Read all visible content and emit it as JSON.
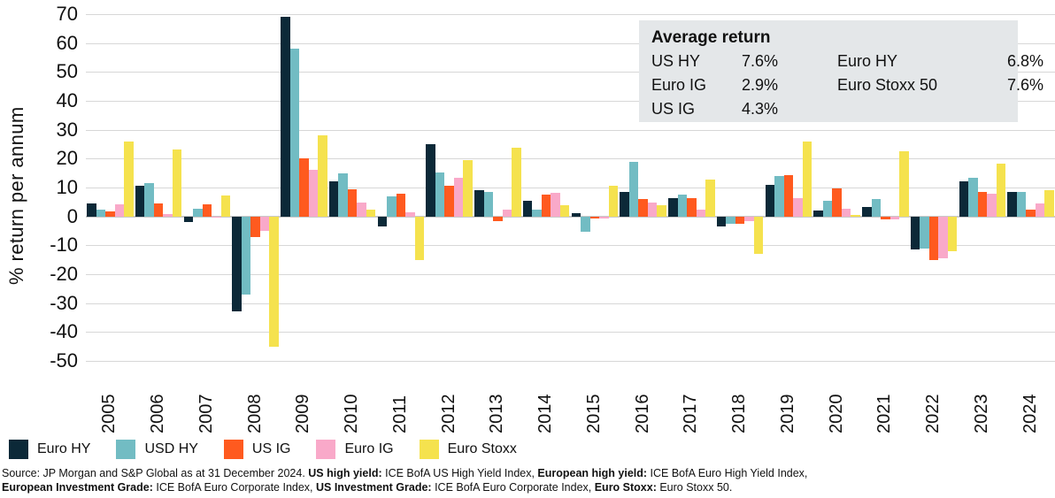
{
  "chart_data": {
    "type": "bar",
    "title": "",
    "ylabel": "% return per annum",
    "ylim": [
      -50,
      70
    ],
    "ytick_step": 10,
    "grid": "horizontal",
    "legend_position": "bottom-left",
    "categories": [
      "2005",
      "2006",
      "2007",
      "2008",
      "2009",
      "2010",
      "2011",
      "2012",
      "2013",
      "2014",
      "2015",
      "2016",
      "2017",
      "2018",
      "2019",
      "2020",
      "2021",
      "2022",
      "2023",
      "2024"
    ],
    "series": [
      {
        "name": "Euro HY",
        "color": "#0c2938",
        "values": [
          4.5,
          10.5,
          -2.0,
          -33.0,
          69.0,
          12.0,
          -3.5,
          25.0,
          9.0,
          5.5,
          1.0,
          8.5,
          6.2,
          -3.5,
          11.0,
          2.0,
          3.2,
          -11.5,
          12.0,
          8.5
        ]
      },
      {
        "name": "USD HY",
        "color": "#72bcc3",
        "values": [
          2.5,
          11.5,
          2.7,
          -27.0,
          58.0,
          15.0,
          7.0,
          15.2,
          8.5,
          2.2,
          -5.3,
          19.0,
          7.6,
          -2.5,
          14.1,
          5.4,
          5.9,
          -11.0,
          13.5,
          8.6
        ]
      },
      {
        "name": "US IG",
        "color": "#ff5a1f",
        "values": [
          1.7,
          4.4,
          4.1,
          -7.0,
          20.0,
          9.4,
          7.8,
          10.5,
          -1.5,
          7.5,
          -0.8,
          6.0,
          6.4,
          -2.7,
          14.2,
          9.6,
          -1.0,
          -15.0,
          8.4,
          2.5
        ]
      },
      {
        "name": "Euro IG",
        "color": "#f9a9c9",
        "values": [
          4.2,
          0.7,
          -0.4,
          -5.0,
          16.2,
          4.9,
          1.5,
          13.5,
          2.4,
          8.3,
          -0.6,
          4.7,
          2.4,
          -1.5,
          6.3,
          2.7,
          -1.0,
          -14.5,
          8.0,
          4.4
        ]
      },
      {
        "name": "Euro Stoxx",
        "color": "#f5e24e",
        "values": [
          25.8,
          23.2,
          7.2,
          -45.0,
          28.0,
          2.5,
          -15.0,
          19.5,
          23.7,
          4.0,
          10.5,
          4.0,
          12.8,
          -13.0,
          26.0,
          0.5,
          22.7,
          -12.0,
          18.3,
          9.2
        ]
      }
    ]
  },
  "average_box": {
    "title": "Average return",
    "rows": [
      [
        "US HY",
        "7.6%",
        "Euro HY",
        "6.8%"
      ],
      [
        "Euro IG",
        "2.9%",
        "Euro Stoxx 50",
        "7.6%"
      ],
      [
        "US IG",
        "4.3%",
        "",
        ""
      ]
    ]
  },
  "source": {
    "lines": [
      [
        {
          "t": "Source: JP Morgan and S&P Global as at 31 December 2024. ",
          "b": false
        },
        {
          "t": "US high yield:",
          "b": true
        },
        {
          "t": " ICE BofA US High Yield Index, ",
          "b": false
        },
        {
          "t": "European high yield:",
          "b": true
        },
        {
          "t": " ICE BofA Euro High Yield Index,",
          "b": false
        }
      ],
      [
        {
          "t": "European Investment Grade:",
          "b": true
        },
        {
          "t": " ICE BofA Euro Corporate Index, ",
          "b": false
        },
        {
          "t": "US Investment Grade:",
          "b": true
        },
        {
          "t": " ICE BofA Euro Corporate Index, ",
          "b": false
        },
        {
          "t": "Euro Stoxx:",
          "b": true
        },
        {
          "t": " Euro Stoxx 50.",
          "b": false
        }
      ]
    ]
  }
}
